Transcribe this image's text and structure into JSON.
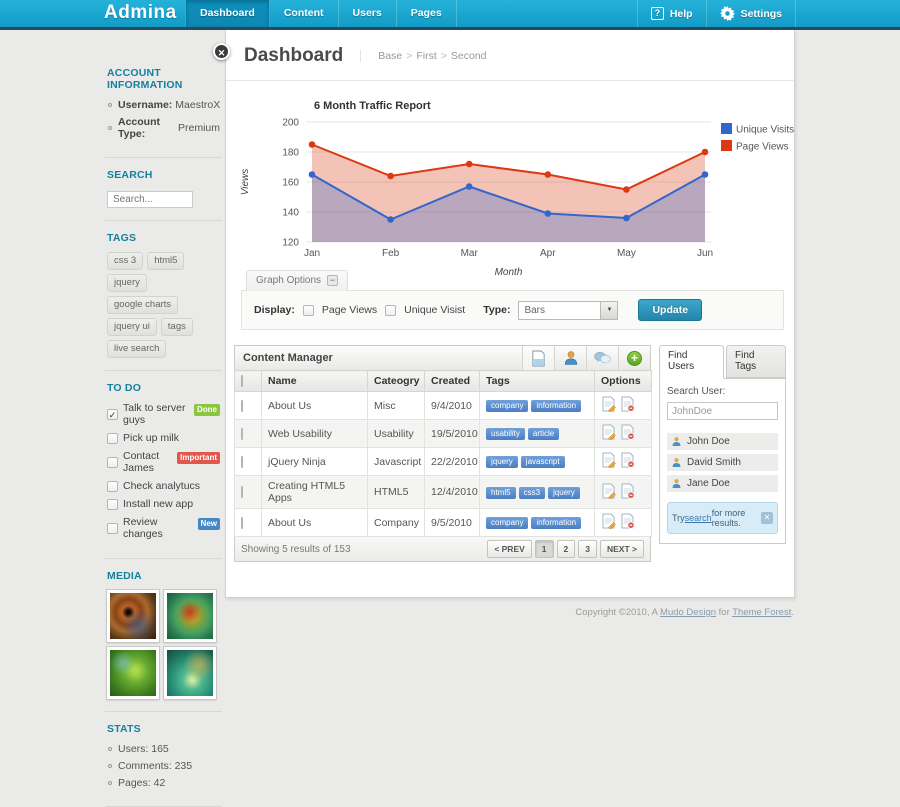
{
  "nav": {
    "logo": "Admina",
    "items": [
      {
        "label": "Dashboard"
      },
      {
        "label": "Content"
      },
      {
        "label": "Users"
      },
      {
        "label": "Pages"
      }
    ],
    "help_label": "Help",
    "settings_label": "Settings"
  },
  "icons": {
    "close": "✕",
    "check": "✓",
    "help": "?",
    "plus": "+",
    "dropdown_arrow": "▼",
    "collapse": "−",
    "breadcrumb_sep": ">"
  },
  "colors": {
    "nav_cyan": "#17a2cb",
    "heading_teal": "#15809e",
    "series_blue": "#3366cc",
    "series_red": "#dc3912",
    "badge_done": "#8cc63e",
    "badge_important": "#e2574c",
    "badge_new": "#4787c8",
    "tag_pill_blue": "#5b8fd0",
    "update_button_blue": "#2f95ba"
  },
  "sidebar": {
    "account": {
      "title": "ACCOUNT INFORMATION",
      "items": [
        {
          "label": "Username:",
          "value": "MaestroX"
        },
        {
          "label": "Account Type:",
          "value": "Premium"
        }
      ]
    },
    "search": {
      "title": "SEARCH",
      "placeholder": "Search..."
    },
    "tags": {
      "title": "TAGS",
      "items": [
        "css 3",
        "html5",
        "jquery",
        "google charts",
        "jquery ui",
        "tags",
        "live search"
      ]
    },
    "todo": {
      "title": "TO DO",
      "items": [
        {
          "label": "Talk to server guys",
          "badge": "Done"
        },
        {
          "label": "Pick up milk"
        },
        {
          "label": "Contact James",
          "badge": "Important"
        },
        {
          "label": "Check analytucs"
        },
        {
          "label": "Install new app"
        },
        {
          "label": "Review changes",
          "badge": "New"
        }
      ]
    },
    "media": {
      "title": "MEDIA"
    },
    "stats": {
      "title": "STATS",
      "items": [
        "Users: 165",
        "Comments: 235",
        "Pages: 42"
      ]
    }
  },
  "main": {
    "title": "Dashboard",
    "breadcrumb": [
      "Base",
      "First",
      "Second"
    ],
    "graph_options": {
      "tab_label": "Graph Options",
      "display_label": "Display:",
      "option1": "Page Views",
      "option2": "Unique Visist",
      "type_label": "Type:",
      "type_value": "Bars",
      "update_label": "Update"
    },
    "content_manager": {
      "title": "Content Manager",
      "columns": [
        "Name",
        "Cateogry",
        "Created",
        "Tags",
        "Options"
      ],
      "rows": [
        {
          "name": "About Us",
          "category": "Misc",
          "created": "9/4/2010",
          "tags": [
            "company",
            "information"
          ]
        },
        {
          "name": "Web Usability",
          "category": "Usability",
          "created": "19/5/2010",
          "tags": [
            "usability",
            "article"
          ]
        },
        {
          "name": "jQuery Ninja",
          "category": "Javascript",
          "created": "22/2/2010",
          "tags": [
            "jquery",
            "javascript"
          ]
        },
        {
          "name": "Creating HTML5 Apps",
          "category": "HTML5",
          "created": "12/4/2010",
          "tags": [
            "html5",
            "css3",
            "jquery"
          ]
        },
        {
          "name": "About Us",
          "category": "Company",
          "created": "9/5/2010",
          "tags": [
            "company",
            "information"
          ]
        }
      ],
      "showing": "Showing 5 results of 153",
      "pagination": [
        "< PREV",
        "1",
        "2",
        "3",
        "NEXT >"
      ]
    },
    "find_users": {
      "tabs": [
        "Find Users",
        "Find Tags"
      ],
      "search_label": "Search User:",
      "search_value": "JohnDoe",
      "users": [
        "John Doe",
        "David Smith",
        "Jane Doe"
      ],
      "notice": {
        "prefix": "Try ",
        "link": "search",
        "suffix": " for more results."
      }
    }
  },
  "chart_data": {
    "type": "area",
    "title": "6 Month Traffic Report",
    "categories": [
      "Jan",
      "Feb",
      "Mar",
      "Apr",
      "May",
      "Jun"
    ],
    "series": [
      {
        "name": "Unique Visits",
        "color": "#3366cc",
        "values": [
          165,
          135,
          157,
          139,
          136,
          165
        ]
      },
      {
        "name": "Page Views",
        "color": "#dc3912",
        "values": [
          185,
          164,
          172,
          165,
          155,
          180
        ]
      }
    ],
    "xlabel": "Month",
    "ylabel": "Views",
    "ylim": [
      120,
      200
    ],
    "yticks": [
      120,
      140,
      160,
      180,
      200
    ],
    "grid": true,
    "legend_position": "right-top"
  },
  "footer": {
    "prefix": "Copyright ©2010, A ",
    "link1": "Mudo Design",
    "mid": " for ",
    "link2": "Theme Forest",
    "suffix": "."
  }
}
